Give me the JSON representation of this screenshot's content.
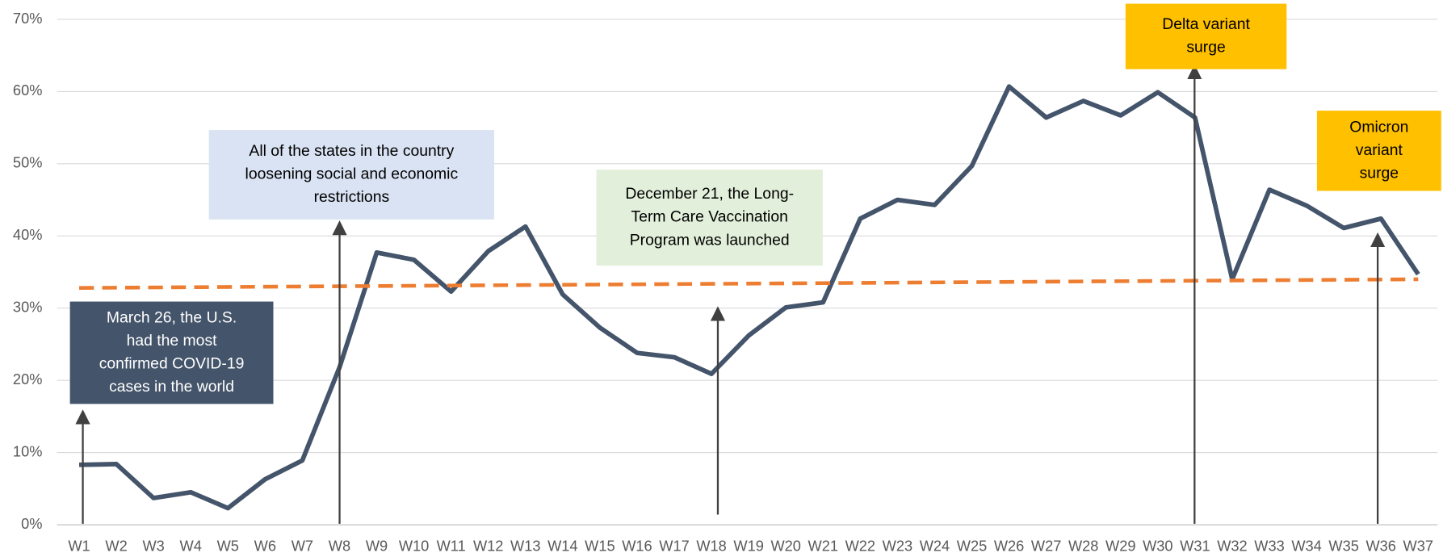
{
  "chart_data": {
    "type": "line",
    "categories": [
      "W1",
      "W2",
      "W3",
      "W4",
      "W5",
      "W6",
      "W7",
      "W8",
      "W9",
      "W10",
      "W11",
      "W12",
      "W13",
      "W14",
      "W15",
      "W16",
      "W17",
      "W18",
      "W19",
      "W20",
      "W21",
      "W22",
      "W23",
      "W24",
      "W25",
      "W26",
      "W27",
      "W28",
      "W29",
      "W30",
      "W31",
      "W32",
      "W33",
      "W34",
      "W35",
      "W36",
      "W37"
    ],
    "series": [
      {
        "color": "#44546A",
        "values": [
          8.3,
          8.4,
          3.7,
          4.5,
          2.3,
          6.3,
          8.9,
          21.8,
          37.7,
          36.7,
          32.3,
          37.9,
          41.3,
          31.9,
          27.3,
          23.8,
          23.2,
          20.9,
          26.2,
          30.1,
          30.8,
          42.4,
          45.0,
          44.3,
          49.7,
          60.7,
          56.4,
          58.7,
          56.7,
          59.9,
          56.4,
          34.0,
          46.4,
          44.2,
          41.1,
          42.4,
          34.7
        ]
      }
    ],
    "trendline": {
      "color": "#ED7D31",
      "values": [
        32.8,
        34.0
      ]
    },
    "ylim": [
      0,
      70
    ],
    "yticks": [
      {
        "value": 0,
        "label": "0%"
      },
      {
        "value": 10,
        "label": "10%"
      },
      {
        "value": 20,
        "label": "20%"
      },
      {
        "value": 30,
        "label": "30%"
      },
      {
        "value": 40,
        "label": "40%"
      },
      {
        "value": 50,
        "label": "50%"
      },
      {
        "value": 60,
        "label": "60%"
      },
      {
        "value": 70,
        "label": "70%"
      }
    ],
    "grid": true,
    "annotations": [
      {
        "lines": [
          "March 26, the U.S.",
          "had the most",
          "confirmed COVID-19",
          "cases in the world"
        ],
        "color": "#44546A",
        "text_color": "#FFFFFF"
      },
      {
        "lines": [
          "All of the states in the country",
          "loosening social and economic",
          "restrictions"
        ],
        "color": "#DAE3F3",
        "text_color": "#000000"
      },
      {
        "lines": [
          "December 21, the Long-",
          "Term Care Vaccination",
          "Program was launched"
        ],
        "color": "#E2EFDA",
        "text_color": "#000000"
      },
      {
        "lines": [
          "Delta variant",
          "surge"
        ],
        "color": "#FFC000",
        "text_color": "#000000"
      },
      {
        "lines": [
          "Omicron",
          "variant",
          "surge"
        ],
        "color": "#FFC000",
        "text_color": "#000000"
      }
    ]
  }
}
